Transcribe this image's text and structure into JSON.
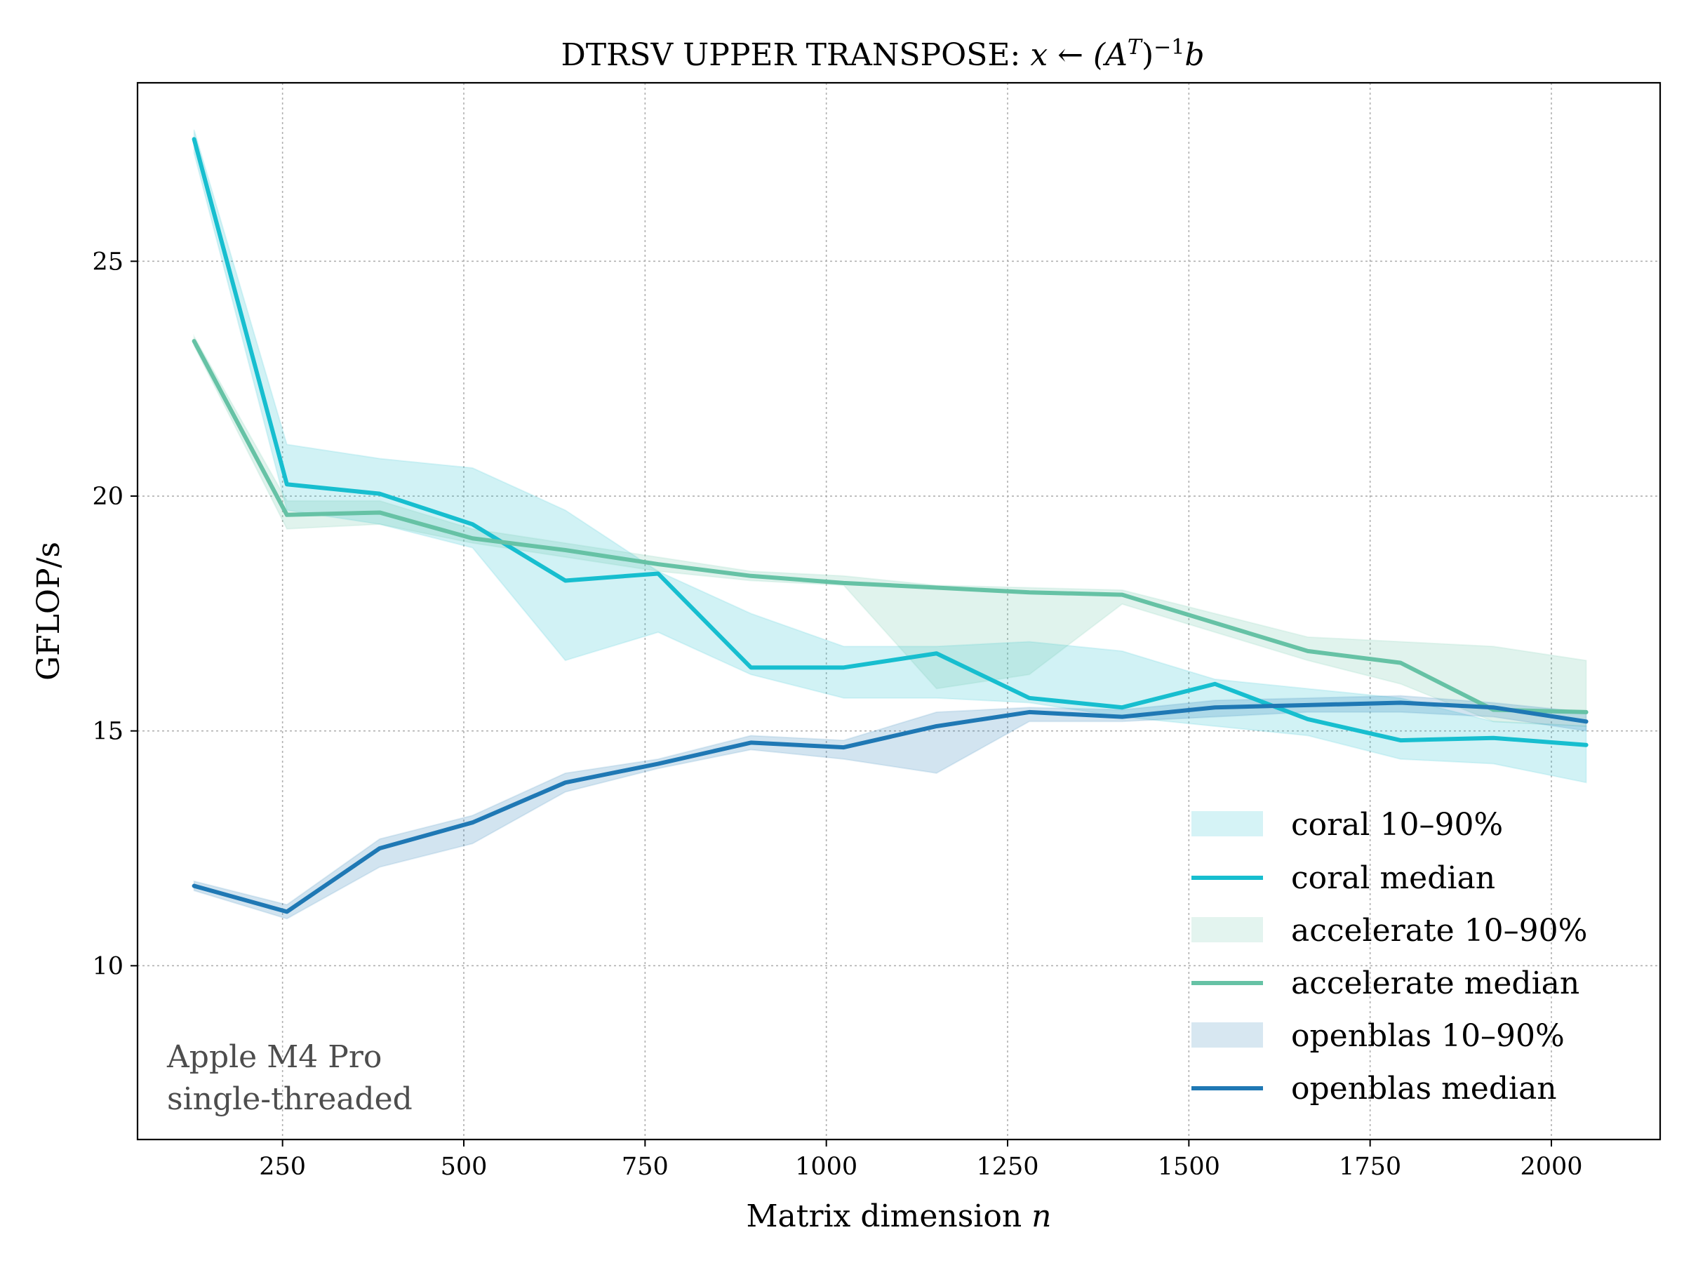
{
  "chart_data": {
    "type": "line",
    "title_prefix": "DTRSV UPPER TRANSPOSE: ",
    "title_math": "x ← (A",
    "title_math_sup1": "T",
    "title_math_mid": ")",
    "title_math_sup2": "−1",
    "title_math_end": "b",
    "xlabel_text": "Matrix dimension ",
    "xlabel_var": "n",
    "ylabel": "GFLOP/s",
    "xlim": [
      50,
      2150
    ],
    "ylim": [
      6.3,
      28.8
    ],
    "x_ticks": [
      250,
      500,
      750,
      1000,
      1250,
      1500,
      1750,
      2000
    ],
    "y_ticks": [
      10,
      15,
      20,
      25
    ],
    "grid": true,
    "legend_position": "lower-right",
    "annotation": [
      "Apple M4 Pro",
      "single-threaded"
    ],
    "x": [
      128,
      256,
      384,
      512,
      640,
      768,
      896,
      1024,
      1152,
      1280,
      1408,
      1536,
      1664,
      1792,
      1920,
      2048
    ],
    "series": [
      {
        "name": "coral",
        "color": "#17becf",
        "median_label": "coral median",
        "band_label": "coral 10–90%",
        "median": [
          27.6,
          20.25,
          20.05,
          19.4,
          18.2,
          18.35,
          16.35,
          16.35,
          16.65,
          15.7,
          15.5,
          16.0,
          15.25,
          14.8,
          14.85,
          14.7
        ],
        "p10": [
          27.3,
          19.7,
          19.4,
          18.9,
          16.5,
          17.1,
          16.2,
          15.7,
          15.7,
          15.6,
          15.3,
          15.1,
          14.9,
          14.4,
          14.3,
          13.9
        ],
        "p90": [
          27.8,
          21.1,
          20.8,
          20.6,
          19.7,
          18.4,
          17.5,
          16.8,
          16.8,
          16.9,
          16.7,
          16.1,
          15.9,
          15.7,
          15.2,
          15.1
        ]
      },
      {
        "name": "accelerate",
        "color": "#66c2a5",
        "median_label": "accelerate median",
        "band_label": "accelerate 10–90%",
        "median": [
          23.3,
          19.6,
          19.65,
          19.1,
          18.85,
          18.55,
          18.3,
          18.15,
          18.05,
          17.95,
          17.9,
          17.3,
          16.7,
          16.45,
          15.45,
          15.4
        ],
        "p10": [
          23.2,
          19.3,
          19.4,
          19.0,
          18.7,
          18.4,
          18.2,
          18.1,
          15.9,
          16.2,
          17.7,
          17.1,
          16.5,
          16.0,
          15.2,
          15.1
        ],
        "p90": [
          23.4,
          19.9,
          19.9,
          19.3,
          19.0,
          18.7,
          18.4,
          18.3,
          18.1,
          18.05,
          18.0,
          17.5,
          17.0,
          16.9,
          16.8,
          16.5
        ]
      },
      {
        "name": "openblas",
        "color": "#1f78b4",
        "median_label": "openblas median",
        "band_label": "openblas 10–90%",
        "median": [
          11.7,
          11.15,
          12.5,
          13.05,
          13.9,
          14.3,
          14.75,
          14.65,
          15.1,
          15.4,
          15.3,
          15.5,
          15.55,
          15.6,
          15.5,
          15.2
        ],
        "p10": [
          11.6,
          11.0,
          12.1,
          12.6,
          13.7,
          14.2,
          14.6,
          14.4,
          14.1,
          15.2,
          15.2,
          15.3,
          15.4,
          15.4,
          15.3,
          15.0
        ],
        "p90": [
          11.8,
          11.3,
          12.7,
          13.2,
          14.1,
          14.4,
          14.9,
          14.8,
          15.4,
          15.5,
          15.45,
          15.65,
          15.7,
          15.75,
          15.6,
          15.4
        ]
      }
    ],
    "legend": [
      "coral 10–90%",
      "coral median",
      "accelerate 10–90%",
      "accelerate median",
      "openblas 10–90%",
      "openblas median"
    ]
  }
}
